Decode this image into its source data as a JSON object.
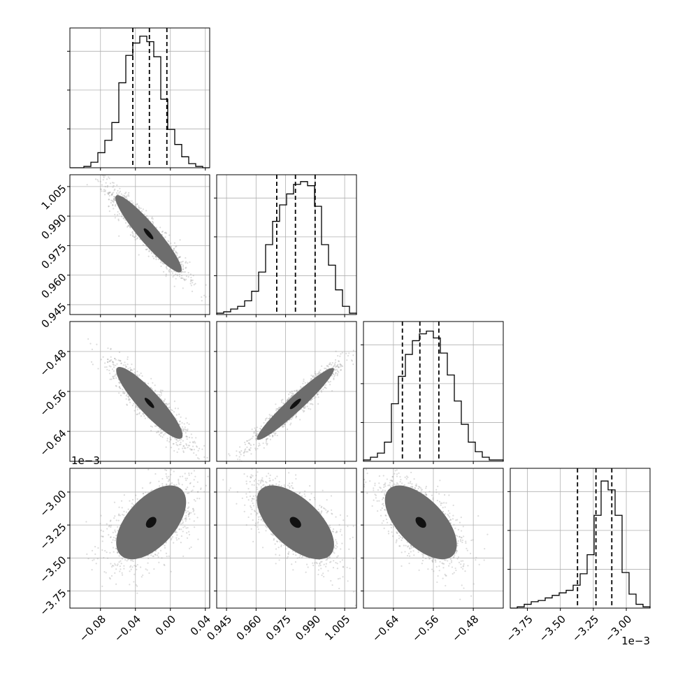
{
  "chart_data": {
    "type": "corner",
    "parameters": [
      {
        "range": [
          -0.115,
          0.045
        ],
        "ticks": [
          -0.08,
          -0.04,
          0.0,
          0.04
        ],
        "tick_labels": [
          "−0.08",
          "−0.04",
          "0.00",
          "0.04"
        ],
        "quantiles": [
          -0.043,
          -0.024,
          -0.004
        ],
        "hist": [
          0.0,
          0.0,
          0.01,
          0.04,
          0.11,
          0.2,
          0.33,
          0.62,
          0.82,
          0.91,
          0.96,
          0.92,
          0.81,
          0.5,
          0.28,
          0.17,
          0.08,
          0.03,
          0.01,
          0.0
        ],
        "hist_ylim": [
          0,
          1.02
        ]
      },
      {
        "range": [
          0.94,
          1.011
        ],
        "ticks": [
          0.945,
          0.96,
          0.975,
          0.99,
          1.005
        ],
        "tick_labels": [
          "0.945",
          "0.960",
          "0.975",
          "0.990",
          "1.005"
        ],
        "quantiles": [
          0.9705,
          0.98,
          0.99
        ],
        "hist": [
          0.01,
          0.02,
          0.04,
          0.06,
          0.1,
          0.17,
          0.31,
          0.51,
          0.68,
          0.8,
          0.88,
          0.95,
          0.97,
          0.94,
          0.79,
          0.51,
          0.36,
          0.18,
          0.06,
          0.01
        ],
        "hist_ylim": [
          0,
          1.02
        ]
      },
      {
        "range": [
          -0.7,
          -0.42
        ],
        "ticks": [
          -0.64,
          -0.56,
          -0.48
        ],
        "tick_labels": [
          "−0.64",
          "−0.56",
          "−0.48"
        ],
        "quantiles": [
          -0.622,
          -0.587,
          -0.549
        ],
        "hist": [
          0.01,
          0.03,
          0.06,
          0.14,
          0.42,
          0.62,
          0.78,
          0.88,
          0.93,
          0.95,
          0.9,
          0.79,
          0.63,
          0.44,
          0.27,
          0.14,
          0.07,
          0.03,
          0.01,
          0.01
        ],
        "hist_ylim": [
          0,
          1.02
        ]
      },
      {
        "range": [
          -3.88,
          -2.82
        ],
        "ticks": [
          -3.75,
          -3.5,
          -3.25,
          -3.0
        ],
        "tick_labels": [
          "−3.75",
          "−3.50",
          "−3.25",
          "−3.00"
        ],
        "offset_text": "1e−3",
        "quantiles": [
          -3.37,
          -3.23,
          -3.11
        ],
        "hist": [
          0.0,
          0.01,
          0.03,
          0.05,
          0.06,
          0.08,
          0.1,
          0.12,
          0.14,
          0.18,
          0.27,
          0.42,
          0.73,
          1.0,
          0.93,
          0.73,
          0.28,
          0.11,
          0.03,
          0.01
        ],
        "hist_ylim": [
          0,
          1.1
        ]
      }
    ],
    "pairs": [
      {
        "x": 0,
        "y": 1,
        "center": [
          -0.025,
          0.981
        ],
        "sigma": [
          0.019,
          0.0098
        ],
        "rho": -0.93
      },
      {
        "x": 0,
        "y": 2,
        "center": [
          -0.024,
          -0.583
        ],
        "sigma": [
          0.019,
          0.036
        ],
        "rho": -0.9
      },
      {
        "x": 1,
        "y": 2,
        "center": [
          0.98,
          -0.585
        ],
        "sigma": [
          0.0098,
          0.036
        ],
        "rho": 0.96
      },
      {
        "x": 0,
        "y": 3,
        "center": [
          -0.022,
          -3.23
        ],
        "sigma": [
          0.02,
          0.14
        ],
        "rho": 0.55
      },
      {
        "x": 1,
        "y": 3,
        "center": [
          0.98,
          -3.23
        ],
        "sigma": [
          0.0098,
          0.14
        ],
        "rho": -0.6
      },
      {
        "x": 2,
        "y": 3,
        "center": [
          -0.585,
          -3.23
        ],
        "sigma": [
          0.036,
          0.14
        ],
        "rho": -0.6
      }
    ],
    "contour_levels": [
      0.5,
      1.0,
      1.5,
      2.0
    ],
    "grid": true,
    "colors": {
      "line": "#000000",
      "points": "#9a9a9a",
      "grid": "#b0b0b0",
      "fill_light": "#f2f2f2"
    }
  }
}
